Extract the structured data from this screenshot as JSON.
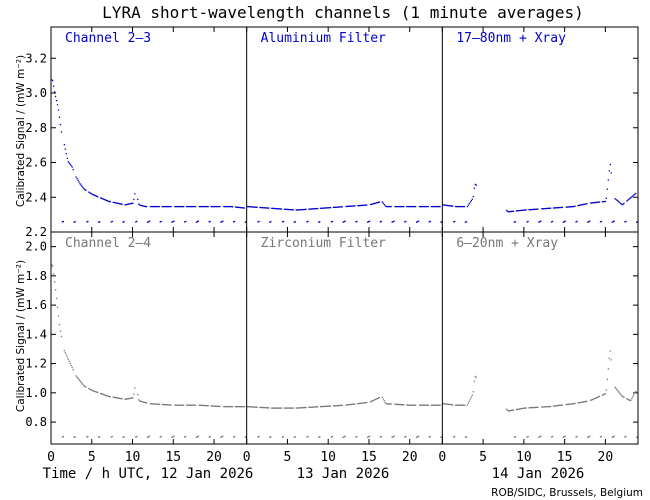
{
  "title": "LYRA short-wavelength channels (1 minute averages)",
  "ylabel": "Calibrated Signal / (mW m⁻²)",
  "credit": "ROB/SIDC, Brussels, Belgium",
  "colors": {
    "top": "#0000cc",
    "bottom": "#777777",
    "axes": "#000000"
  },
  "days": [
    {
      "label": "Time / h UTC, 12 Jan 2026"
    },
    {
      "label": "13 Jan 2026"
    },
    {
      "label": "14 Jan 2026"
    }
  ],
  "x_ticks": [
    "0",
    "5",
    "10",
    "15",
    "20"
  ],
  "chart_data": [
    {
      "row": "top",
      "type": "scatter",
      "ylim": [
        2.2,
        3.38
      ],
      "yticks": [
        "2.2",
        "2.4",
        "2.6",
        "2.8",
        "3.0",
        "3.2"
      ],
      "ytick_values": [
        2.2,
        2.4,
        2.6,
        2.8,
        3.0,
        3.2
      ],
      "panels": [
        {
          "label": "Channel 2–3",
          "day": "12 Jan 2026",
          "xlim": [
            0,
            24
          ],
          "points": [
            [
              0.1,
              3.08
            ],
            [
              0.4,
              3.0
            ],
            [
              0.8,
              2.92
            ],
            [
              1.2,
              2.78
            ],
            [
              1.5,
              2.72
            ],
            [
              2.0,
              2.61
            ],
            [
              2.5,
              2.58
            ],
            [
              3.0,
              2.52
            ],
            [
              3.5,
              2.48
            ],
            [
              4.0,
              2.45
            ],
            [
              5.0,
              2.42
            ],
            [
              6.0,
              2.4
            ],
            [
              7.0,
              2.38
            ],
            [
              8.0,
              2.37
            ],
            [
              9.0,
              2.36
            ],
            [
              10.0,
              2.37
            ],
            [
              10.3,
              2.45
            ],
            [
              10.7,
              2.36
            ],
            [
              11.5,
              2.35
            ],
            [
              13.0,
              2.35
            ],
            [
              16.0,
              2.35
            ],
            [
              19.0,
              2.35
            ],
            [
              22.0,
              2.35
            ],
            [
              24.0,
              2.34
            ]
          ],
          "dips": 2.26
        },
        {
          "label": "Aluminium Filter",
          "day": "13 Jan 2026",
          "xlim": [
            0,
            24
          ],
          "points": [
            [
              0.0,
              2.35
            ],
            [
              3.0,
              2.34
            ],
            [
              6.0,
              2.33
            ],
            [
              9.0,
              2.34
            ],
            [
              12.0,
              2.35
            ],
            [
              15.0,
              2.36
            ],
            [
              16.5,
              2.38
            ],
            [
              17.0,
              2.35
            ],
            [
              20.0,
              2.35
            ],
            [
              24.0,
              2.35
            ]
          ],
          "dips": 2.26
        },
        {
          "label": "17–80nm + Xray",
          "day": "14 Jan 2026",
          "xlim": [
            0,
            24
          ],
          "points": [
            [
              0.0,
              2.36
            ],
            [
              1.5,
              2.35
            ],
            [
              3.0,
              2.35
            ],
            [
              3.7,
              2.4
            ],
            [
              3.9,
              2.48
            ],
            [
              8.0,
              2.32
            ],
            [
              10.0,
              2.33
            ],
            [
              13.0,
              2.34
            ],
            [
              16.0,
              2.35
            ],
            [
              18.0,
              2.37
            ],
            [
              20.0,
              2.38
            ],
            [
              20.5,
              2.6
            ],
            [
              21.0,
              2.4
            ],
            [
              22.0,
              2.36
            ],
            [
              24.0,
              2.44
            ]
          ],
          "gap": [
            4.2,
            7.8
          ],
          "dips": 2.26
        }
      ]
    },
    {
      "row": "bottom",
      "type": "scatter",
      "ylim": [
        0.65,
        2.1
      ],
      "yticks": [
        "0.8",
        "1.0",
        "1.2",
        "1.4",
        "1.6",
        "1.8",
        "2.0"
      ],
      "ytick_values": [
        0.8,
        1.0,
        1.2,
        1.4,
        1.6,
        1.8,
        2.0
      ],
      "panels": [
        {
          "label": "Channel 2–4",
          "day": "12 Jan 2026",
          "xlim": [
            0,
            24
          ],
          "points": [
            [
              0.1,
              1.88
            ],
            [
              0.5,
              1.7
            ],
            [
              1.0,
              1.45
            ],
            [
              1.5,
              1.3
            ],
            [
              2.0,
              1.24
            ],
            [
              2.5,
              1.18
            ],
            [
              3.0,
              1.12
            ],
            [
              4.0,
              1.05
            ],
            [
              5.0,
              1.02
            ],
            [
              6.0,
              1.0
            ],
            [
              7.0,
              0.98
            ],
            [
              9.0,
              0.96
            ],
            [
              10.0,
              0.97
            ],
            [
              10.3,
              1.07
            ],
            [
              10.7,
              0.95
            ],
            [
              12.0,
              0.93
            ],
            [
              15.0,
              0.92
            ],
            [
              18.0,
              0.92
            ],
            [
              21.0,
              0.91
            ],
            [
              24.0,
              0.91
            ]
          ],
          "dips": 0.7
        },
        {
          "label": "Zirconium Filter",
          "day": "13 Jan 2026",
          "xlim": [
            0,
            24
          ],
          "points": [
            [
              0.0,
              0.91
            ],
            [
              3.0,
              0.9
            ],
            [
              6.0,
              0.9
            ],
            [
              9.0,
              0.91
            ],
            [
              12.0,
              0.92
            ],
            [
              15.0,
              0.94
            ],
            [
              16.5,
              0.98
            ],
            [
              17.0,
              0.93
            ],
            [
              20.0,
              0.92
            ],
            [
              24.0,
              0.92
            ]
          ],
          "dips": 0.7
        },
        {
          "label": "6–20nm + Xray",
          "day": "14 Jan 2026",
          "xlim": [
            0,
            24
          ],
          "points": [
            [
              0.0,
              0.93
            ],
            [
              1.5,
              0.92
            ],
            [
              3.0,
              0.92
            ],
            [
              3.7,
              1.0
            ],
            [
              3.9,
              1.12
            ],
            [
              8.0,
              0.88
            ],
            [
              10.0,
              0.9
            ],
            [
              13.0,
              0.91
            ],
            [
              16.0,
              0.93
            ],
            [
              18.0,
              0.95
            ],
            [
              20.0,
              1.0
            ],
            [
              20.5,
              1.3
            ],
            [
              21.0,
              1.05
            ],
            [
              22.0,
              0.98
            ],
            [
              23.0,
              0.95
            ],
            [
              24.0,
              1.05
            ]
          ],
          "gap": [
            4.2,
            7.8
          ],
          "dips": 0.7
        }
      ]
    }
  ]
}
